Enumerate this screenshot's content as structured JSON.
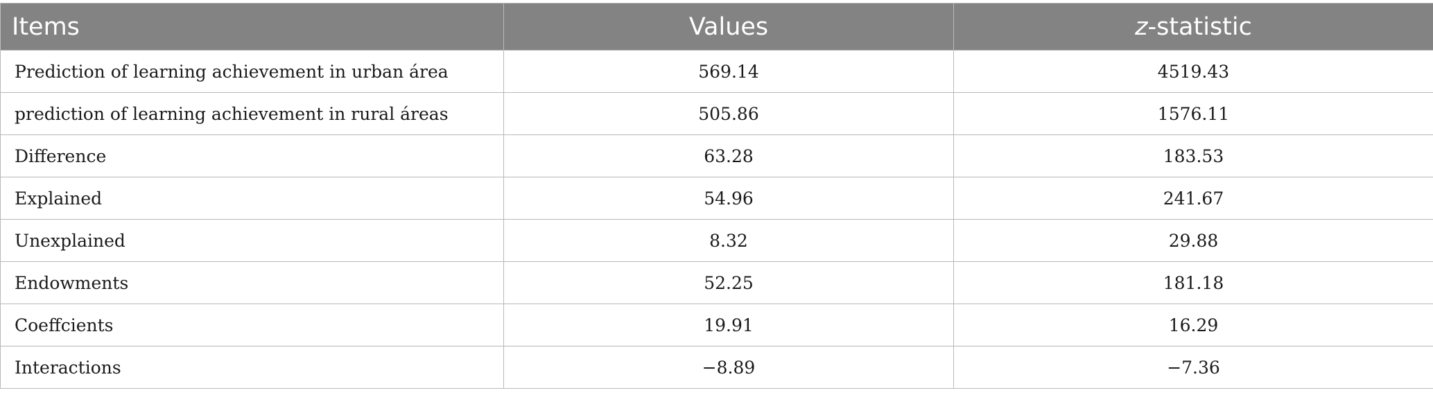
{
  "table": {
    "headers": {
      "items": "Items",
      "values": "Values",
      "z_prefix": "z",
      "z_suffix": "-statistic"
    },
    "rows": [
      {
        "item": "Prediction of learning achievement in urban área",
        "value": "569.14",
        "z": "4519.43"
      },
      {
        "item": "prediction of learning achievement in rural áreas",
        "value": "505.86",
        "z": "1576.11"
      },
      {
        "item": "Difference",
        "value": "63.28",
        "z": "183.53"
      },
      {
        "item": "Explained",
        "value": "54.96",
        "z": "241.67"
      },
      {
        "item": "Unexplained",
        "value": "8.32",
        "z": "29.88"
      },
      {
        "item": "Endowments",
        "value": "52.25",
        "z": "181.18"
      },
      {
        "item": "Coeffcients",
        "value": "19.91",
        "z": "16.29"
      },
      {
        "item": "Interactions",
        "value": "−8.89",
        "z": "−7.36"
      }
    ]
  }
}
